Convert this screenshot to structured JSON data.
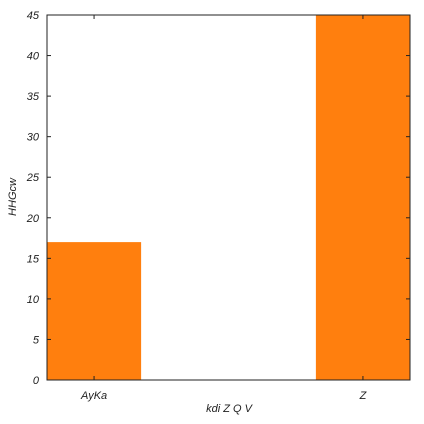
{
  "chart_data": {
    "type": "bar",
    "categories": [
      "AyKa",
      "Z"
    ],
    "values": [
      17,
      45
    ],
    "xlabel": "kdi Z Q  V",
    "ylabel": "HHGcw",
    "ylim": [
      0,
      45
    ],
    "yticks": [
      "0",
      "5",
      "10",
      "15",
      "20",
      "25",
      "30",
      "35",
      "40",
      "45"
    ],
    "grid": false,
    "bar_color": "#ff7f0e",
    "axis_color": "#222222"
  }
}
